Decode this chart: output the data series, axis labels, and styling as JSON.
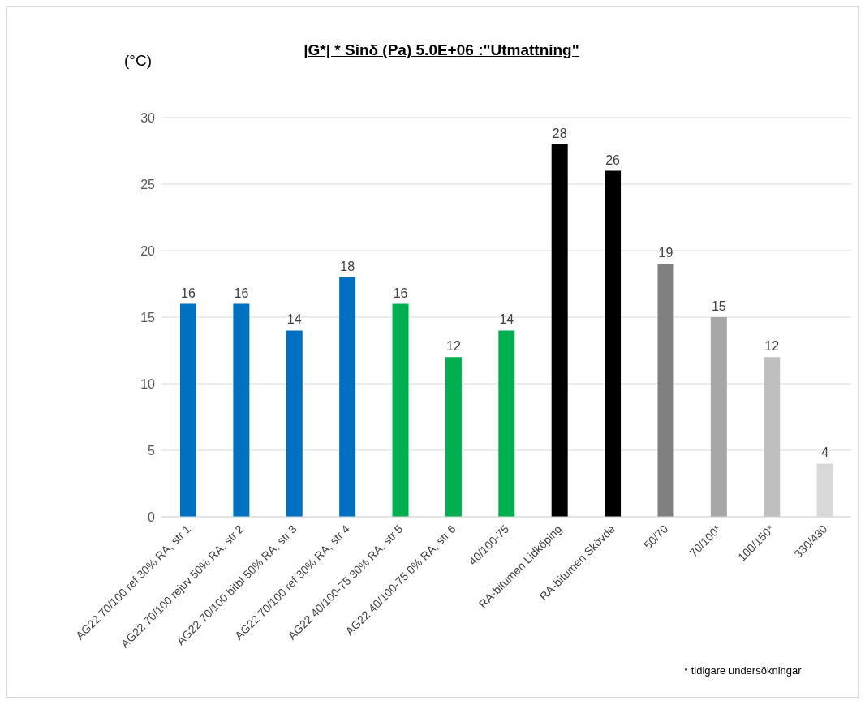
{
  "chart_data": {
    "type": "bar",
    "title": "|G*| * Sinδ (Pa) 5.0E+06 :\"Utmattning\"",
    "ylabel": "(°C)",
    "categories": [
      "AG22 70/100 ref 30% RA, str 1",
      "AG22 70/100 rejuv 50% RA, str 2",
      "AG22 70/100 bitbl 50% RA, str 3",
      "AG22 70/100 ref 30% RA, str 4",
      "AG22 40/100-75 30% RA, str 5",
      "AG22 40/100-75 0% RA, str 6",
      "40/100-75",
      "RA-bitumen Lidköping",
      "RA-bitumen Skövde",
      "50/70",
      "70/100*",
      "100/150*",
      "330/430"
    ],
    "values": [
      16,
      16,
      14,
      18,
      16,
      12,
      14,
      28,
      26,
      19,
      15,
      12,
      4
    ],
    "colors": [
      "#0070c0",
      "#0070c0",
      "#0070c0",
      "#0070c0",
      "#00b050",
      "#00b050",
      "#00b050",
      "#000000",
      "#000000",
      "#808080",
      "#a6a6a6",
      "#bfbfbf",
      "#d9d9d9"
    ],
    "ylim": [
      0,
      30
    ],
    "yticks": [
      0,
      5,
      10,
      15,
      20,
      25,
      30
    ],
    "grid": "y",
    "data_labels": true,
    "annotations": [
      "* tidigare undersökningar"
    ]
  }
}
